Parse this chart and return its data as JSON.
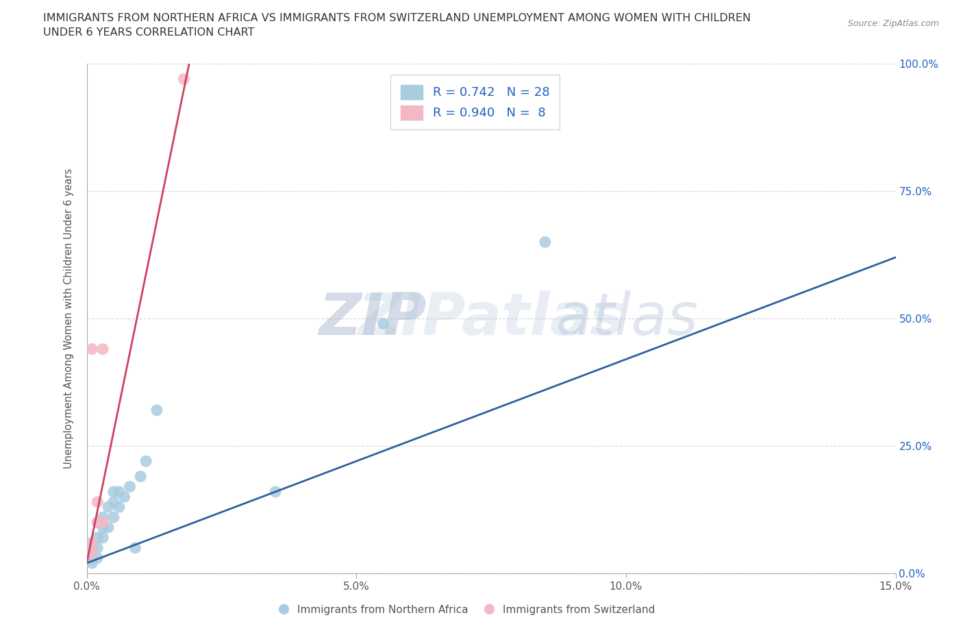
{
  "title_line1": "IMMIGRANTS FROM NORTHERN AFRICA VS IMMIGRANTS FROM SWITZERLAND UNEMPLOYMENT AMONG WOMEN WITH CHILDREN",
  "title_line2": "UNDER 6 YEARS CORRELATION CHART",
  "source": "Source: ZipAtlas.com",
  "ylabel": "Unemployment Among Women with Children Under 6 years",
  "xlim": [
    0.0,
    0.15
  ],
  "ylim": [
    0.0,
    1.0
  ],
  "xticks": [
    0.0,
    0.05,
    0.1,
    0.15
  ],
  "xtick_labels": [
    "0.0%",
    "5.0%",
    "10.0%",
    "15.0%"
  ],
  "yticks": [
    0.0,
    0.25,
    0.5,
    0.75,
    1.0
  ],
  "ytick_labels_right": [
    "0.0%",
    "25.0%",
    "50.0%",
    "75.0%",
    "100.0%"
  ],
  "watermark_zip": "ZIP",
  "watermark_atlas": "atlas",
  "blue_R": 0.742,
  "blue_N": 28,
  "pink_R": 0.94,
  "pink_N": 8,
  "blue_color": "#a8cce0",
  "pink_color": "#f4b8c4",
  "blue_line_color": "#3060a0",
  "pink_line_color": "#d04060",
  "grid_color": "#cccccc",
  "legend_text_color": "#2060c0",
  "blue_scatter_x": [
    0.001,
    0.001,
    0.001,
    0.001,
    0.001,
    0.002,
    0.002,
    0.002,
    0.002,
    0.003,
    0.003,
    0.003,
    0.004,
    0.004,
    0.005,
    0.005,
    0.005,
    0.006,
    0.006,
    0.007,
    0.008,
    0.009,
    0.01,
    0.011,
    0.013,
    0.035,
    0.055,
    0.085
  ],
  "blue_scatter_y": [
    0.02,
    0.03,
    0.04,
    0.05,
    0.06,
    0.03,
    0.05,
    0.07,
    0.1,
    0.07,
    0.09,
    0.11,
    0.09,
    0.13,
    0.11,
    0.14,
    0.16,
    0.13,
    0.16,
    0.15,
    0.17,
    0.05,
    0.19,
    0.22,
    0.32,
    0.16,
    0.49,
    0.65
  ],
  "pink_scatter_x": [
    0.001,
    0.001,
    0.001,
    0.002,
    0.002,
    0.003,
    0.003,
    0.018
  ],
  "pink_scatter_y": [
    0.04,
    0.06,
    0.44,
    0.1,
    0.14,
    0.1,
    0.44,
    0.97
  ],
  "blue_trend_x": [
    0.0,
    0.15
  ],
  "blue_trend_y": [
    0.02,
    0.62
  ],
  "pink_trend_x": [
    0.0,
    0.019
  ],
  "pink_trend_y": [
    0.02,
    1.0
  ]
}
